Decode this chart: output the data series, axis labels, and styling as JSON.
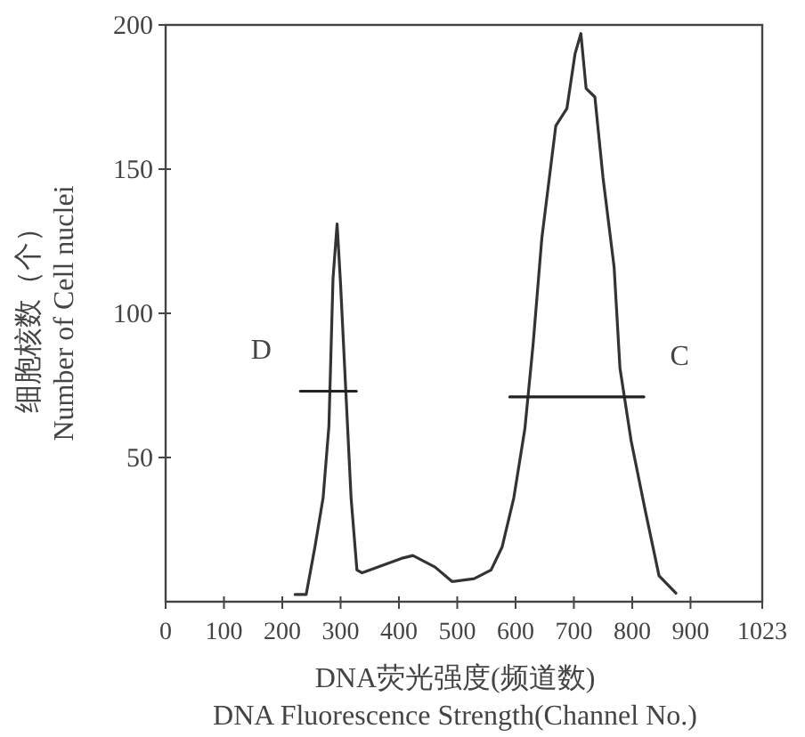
{
  "chart_data": {
    "type": "line",
    "xlabel": "DNA荧光强度(频道数)\nDNA Fluorescence Strength(Channel No.)",
    "ylabel": "细胞核数（个）\nNumber of Cell nuclei",
    "xlim": [
      0,
      1023
    ],
    "xticks": [
      0,
      100,
      200,
      300,
      400,
      500,
      600,
      700,
      800,
      900,
      1023
    ],
    "ylim": [
      0,
      200
    ],
    "yticks": [
      50,
      100,
      150,
      200
    ],
    "grid": false,
    "series": [
      {
        "color": "#333333",
        "x": [
          222,
          241,
          256,
          270,
          280,
          287,
          294,
          300,
          308,
          318,
          328,
          337,
          404,
          424,
          462,
          491,
          529,
          558,
          577,
          597,
          616,
          630,
          645,
          669,
          688,
          702,
          712,
          721,
          736,
          750,
          769,
          779,
          798,
          822,
          846,
          875
        ],
        "values": [
          2.5,
          2.5,
          19,
          36,
          61,
          112,
          131,
          110,
          77,
          36,
          11,
          10,
          15,
          16,
          12,
          7,
          8,
          11,
          19,
          36,
          60,
          89,
          126,
          165,
          171,
          190,
          197,
          178,
          175,
          147,
          116,
          81,
          56,
          32,
          9,
          3
        ]
      },
      {
        "type": "line",
        "color": "#222222",
        "x": [
          231,
          327
        ],
        "values": [
          73,
          73
        ]
      },
      {
        "type": "line",
        "color": "#222222",
        "x": [
          590,
          820
        ],
        "values": [
          71,
          71
        ]
      }
    ],
    "annotations": [
      "D",
      "C"
    ]
  }
}
